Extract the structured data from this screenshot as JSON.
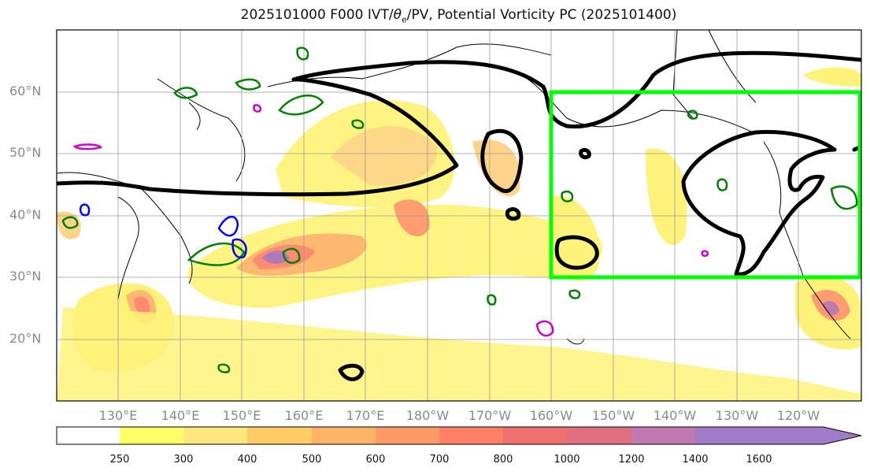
{
  "title": {
    "prefix": "2025101000 F000 IVT/",
    "theta_symbol": "θ",
    "theta_subscript": "e",
    "suffix": "/PV, Potential Vorticity PC (2025101400)"
  },
  "map": {
    "lat_labels": [
      "60°N",
      "50°N",
      "40°N",
      "30°N",
      "20°N"
    ],
    "lon_labels": [
      "130°E",
      "140°E",
      "150°E",
      "160°E",
      "170°E",
      "180°W",
      "170°W",
      "160°W",
      "150°W",
      "140°W",
      "130°W",
      "120°W"
    ],
    "box_color": "#00ff00",
    "pv_contour_color": "#000000",
    "green_contour_color": "#008000",
    "blue_contour_color": "#0000ff",
    "magenta_contour_color": "#cc00cc"
  },
  "colorbar": {
    "labels": [
      "250",
      "300",
      "400",
      "500",
      "600",
      "700",
      "800",
      "1000",
      "1200",
      "1400",
      "1600"
    ],
    "colors": [
      "#ffffff",
      "#ffff66",
      "#ffe680",
      "#ffcc66",
      "#ffb366",
      "#ff9966",
      "#ff8066",
      "#f07070",
      "#e07080",
      "#c07ab0",
      "#a07cc8"
    ]
  }
}
